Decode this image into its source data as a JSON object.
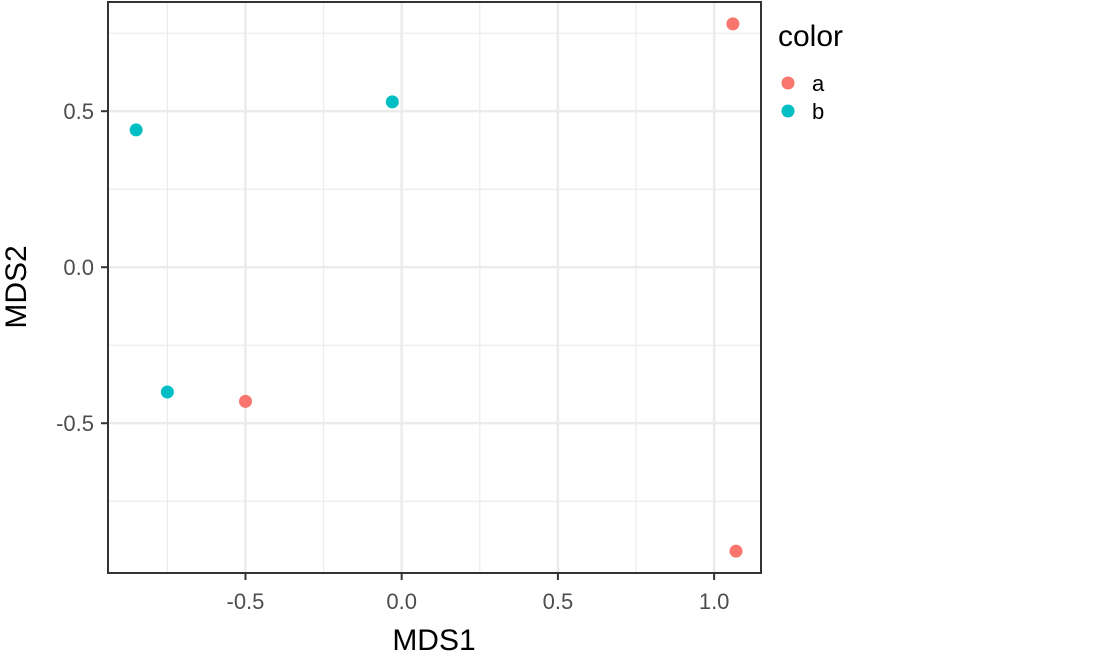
{
  "chart_data": {
    "type": "scatter",
    "xlabel": "MDS1",
    "ylabel": "MDS2",
    "xlim": [
      -0.94,
      1.15
    ],
    "ylim": [
      -0.98,
      0.85
    ],
    "x_ticks": [
      -0.5,
      0.0,
      0.5,
      1.0
    ],
    "x_tick_labels": [
      "-0.5",
      "0.0",
      "0.5",
      "1.0"
    ],
    "y_ticks": [
      -0.5,
      0.0,
      0.5
    ],
    "y_tick_labels": [
      "-0.5",
      "0.0",
      "0.5"
    ],
    "grid": true,
    "legend": {
      "title": "color",
      "placement": "right"
    },
    "series": [
      {
        "name": "a",
        "color": "#F8766D",
        "points": [
          {
            "x": 1.06,
            "y": 0.78
          },
          {
            "x": -0.5,
            "y": -0.43
          },
          {
            "x": 1.07,
            "y": -0.91
          }
        ]
      },
      {
        "name": "b",
        "color": "#00BFC4",
        "points": [
          {
            "x": -0.85,
            "y": 0.44
          },
          {
            "x": -0.03,
            "y": 0.53
          },
          {
            "x": -0.75,
            "y": -0.4
          }
        ]
      }
    ]
  }
}
